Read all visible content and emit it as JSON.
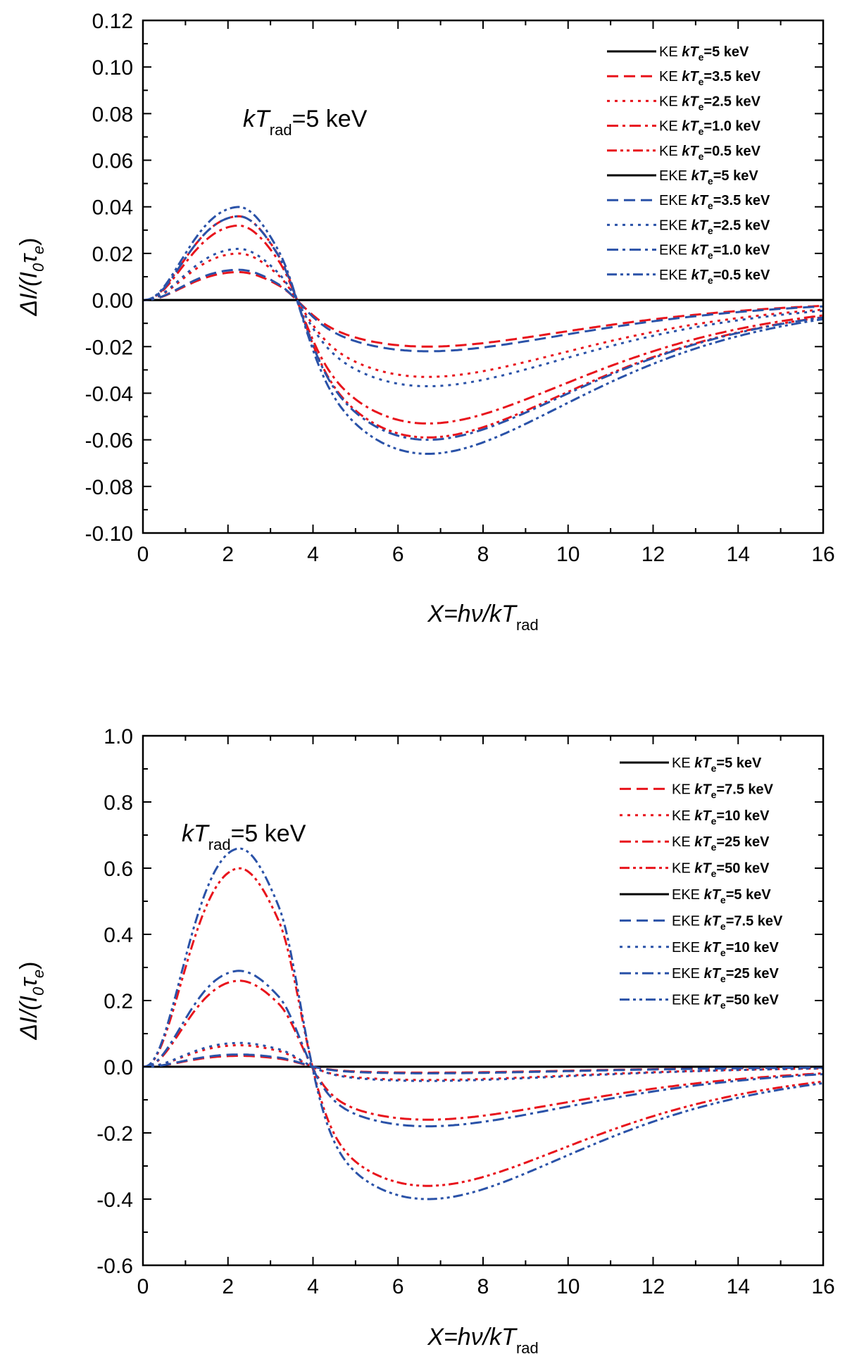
{
  "chart_data": [
    {
      "type": "line",
      "annotation": {
        "main": "kT",
        "sub": "rad",
        "tail": "=5 keV"
      },
      "xlabel": {
        "main": "X=hν/kT",
        "sub": "rad"
      },
      "ylabel": {
        "main": "ΔI/(I",
        "sub0": "0",
        "mid": "τ",
        "sub1": "e",
        "tail": ")"
      },
      "xlim": [
        0,
        16
      ],
      "ylim": [
        -0.1,
        0.12
      ],
      "xticks": [
        "0",
        "2",
        "4",
        "6",
        "8",
        "10",
        "12",
        "14",
        "16"
      ],
      "yticks": [
        "-0.10",
        "-0.08",
        "-0.06",
        "-0.04",
        "-0.02",
        "0.00",
        "0.02",
        "0.04",
        "0.06",
        "0.08",
        "0.10",
        "0.12"
      ],
      "legend_position": "top-right",
      "series": [
        {
          "name": "KE",
          "temp": "=5 keV",
          "color": "#000000",
          "dash": "solid",
          "peak": 0.0,
          "trough": 0.0
        },
        {
          "name": "KE",
          "temp": "=3.5 keV",
          "color": "#e8141c",
          "dash": "dash",
          "peak": 0.012,
          "trough": -0.02
        },
        {
          "name": "KE",
          "temp": "=2.5 keV",
          "color": "#e8141c",
          "dash": "dot",
          "peak": 0.02,
          "trough": -0.033
        },
        {
          "name": "KE",
          "temp": "=1.0 keV",
          "color": "#e8141c",
          "dash": "dashdot",
          "peak": 0.032,
          "trough": -0.053
        },
        {
          "name": "KE",
          "temp": "=0.5 keV",
          "color": "#e8141c",
          "dash": "dashdotdot",
          "peak": 0.036,
          "trough": -0.059
        },
        {
          "name": "EKE",
          "temp": "=5 keV",
          "color": "#000000",
          "dash": "solid",
          "peak": 0.0,
          "trough": 0.0
        },
        {
          "name": "EKE",
          "temp": "=3.5 keV",
          "color": "#2a52a8",
          "dash": "dash",
          "peak": 0.013,
          "trough": -0.022
        },
        {
          "name": "EKE",
          "temp": "=2.5 keV",
          "color": "#2a52a8",
          "dash": "dot",
          "peak": 0.022,
          "trough": -0.037
        },
        {
          "name": "EKE",
          "temp": "=1.0 keV",
          "color": "#2a52a8",
          "dash": "dashdot",
          "peak": 0.036,
          "trough": -0.06
        },
        {
          "name": "EKE",
          "temp": "=0.5 keV",
          "color": "#2a52a8",
          "dash": "dashdotdot",
          "peak": 0.04,
          "trough": -0.066
        }
      ]
    },
    {
      "type": "line",
      "annotation": {
        "main": "kT",
        "sub": "rad",
        "tail": "=5 keV"
      },
      "xlabel": {
        "main": "X=hν/kT",
        "sub": "rad"
      },
      "ylabel": {
        "main": "ΔI/(I",
        "sub0": "0",
        "mid": "τ",
        "sub1": "e",
        "tail": ")"
      },
      "xlim": [
        0,
        16
      ],
      "ylim": [
        -0.6,
        1.0
      ],
      "xticks": [
        "0",
        "2",
        "4",
        "6",
        "8",
        "10",
        "12",
        "14",
        "16"
      ],
      "yticks": [
        "-0.6",
        "-0.4",
        "-0.2",
        "0.0",
        "0.2",
        "0.4",
        "0.6",
        "0.8",
        "1.0"
      ],
      "legend_position": "top-right",
      "series": [
        {
          "name": "KE",
          "temp": "=5 keV",
          "color": "#000000",
          "dash": "solid",
          "peak": 0.0,
          "trough": 0.0
        },
        {
          "name": "KE",
          "temp": "=7.5 keV",
          "color": "#e8141c",
          "dash": "dash",
          "peak": 0.033,
          "trough": -0.018
        },
        {
          "name": "KE",
          "temp": "=10 keV",
          "color": "#e8141c",
          "dash": "dot",
          "peak": 0.065,
          "trough": -0.04
        },
        {
          "name": "KE",
          "temp": "=25 keV",
          "color": "#e8141c",
          "dash": "dashdot",
          "peak": 0.26,
          "trough": -0.16
        },
        {
          "name": "KE",
          "temp": "=50 keV",
          "color": "#e8141c",
          "dash": "dashdotdot",
          "peak": 0.6,
          "trough": -0.36
        },
        {
          "name": "EKE",
          "temp": "=5 keV",
          "color": "#000000",
          "dash": "solid",
          "peak": 0.0,
          "trough": 0.0
        },
        {
          "name": "EKE",
          "temp": "=7.5 keV",
          "color": "#2a52a8",
          "dash": "dash",
          "peak": 0.037,
          "trough": -0.02
        },
        {
          "name": "EKE",
          "temp": "=10 keV",
          "color": "#2a52a8",
          "dash": "dot",
          "peak": 0.072,
          "trough": -0.043
        },
        {
          "name": "EKE",
          "temp": "=25 keV",
          "color": "#2a52a8",
          "dash": "dashdot",
          "peak": 0.29,
          "trough": -0.18
        },
        {
          "name": "EKE",
          "temp": "=50 keV",
          "color": "#2a52a8",
          "dash": "dashdotdot",
          "peak": 0.66,
          "trough": -0.4
        }
      ]
    }
  ]
}
